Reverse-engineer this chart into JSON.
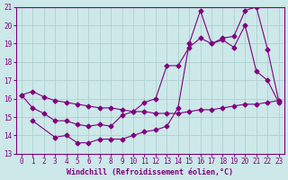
{
  "xlabel": "Windchill (Refroidissement éolien,°C)",
  "background_color": "#cce8e8",
  "line_color": "#800080",
  "grid_color": "#aacccc",
  "xlim": [
    -0.5,
    23.5
  ],
  "ylim": [
    13,
    21
  ],
  "xticks": [
    0,
    1,
    2,
    3,
    4,
    5,
    6,
    7,
    8,
    9,
    10,
    11,
    12,
    13,
    14,
    15,
    16,
    17,
    18,
    19,
    20,
    21,
    22,
    23
  ],
  "yticks": [
    13,
    14,
    15,
    16,
    17,
    18,
    19,
    20,
    21
  ],
  "line1_x": [
    0,
    1,
    2,
    3,
    4,
    5,
    6,
    7,
    8,
    9,
    10,
    11,
    12,
    13,
    14,
    15,
    16,
    17,
    18,
    19,
    20,
    21,
    22,
    23
  ],
  "line1_y": [
    16.2,
    16.4,
    16.1,
    15.9,
    15.8,
    15.7,
    15.6,
    15.5,
    15.5,
    15.4,
    15.3,
    15.3,
    15.2,
    15.2,
    15.2,
    15.3,
    15.4,
    15.4,
    15.5,
    15.6,
    15.7,
    15.7,
    15.8,
    15.9
  ],
  "line2_x": [
    1,
    3,
    4,
    5,
    6,
    7,
    8,
    9,
    10,
    11,
    12,
    13,
    14,
    15,
    16,
    17,
    18,
    19,
    20,
    21,
    22,
    23
  ],
  "line2_y": [
    14.8,
    13.9,
    14.0,
    13.6,
    13.6,
    13.8,
    13.8,
    13.8,
    14.0,
    14.2,
    14.3,
    14.5,
    15.5,
    19.0,
    20.8,
    19.0,
    19.2,
    18.8,
    20.0,
    17.5,
    17.0,
    15.8
  ],
  "line3_x": [
    0,
    1,
    2,
    3,
    4,
    5,
    6,
    7,
    8,
    9,
    10,
    11,
    12,
    13,
    14,
    15,
    16,
    17,
    18,
    19,
    20,
    21,
    22,
    23
  ],
  "line3_y": [
    16.2,
    15.5,
    15.2,
    14.8,
    14.8,
    14.6,
    14.5,
    14.6,
    14.5,
    15.1,
    15.3,
    15.8,
    16.0,
    17.8,
    17.8,
    18.8,
    19.3,
    19.0,
    19.3,
    19.4,
    20.8,
    21.0,
    18.7,
    15.9
  ],
  "marker": "D",
  "markersize": 2.5,
  "linewidth": 0.8,
  "tick_fontsize": 5.5,
  "label_fontsize": 6.0
}
